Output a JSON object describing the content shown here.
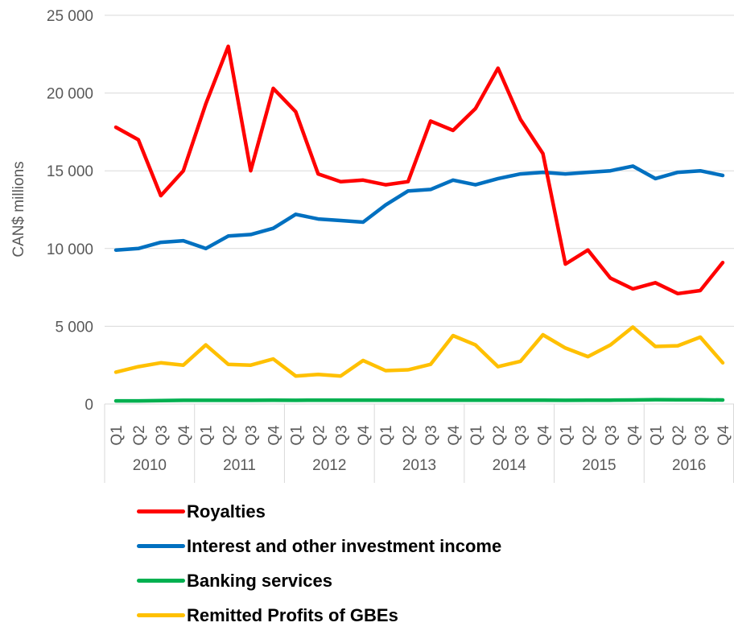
{
  "chart_data": {
    "type": "line",
    "ylabel": "CAN$ millions",
    "ylim": [
      0,
      25000
    ],
    "yticks": [
      0,
      5000,
      10000,
      15000,
      20000,
      25000
    ],
    "ytick_labels": [
      "0",
      "5 000",
      "10 000",
      "15 000",
      "20 000",
      "25 000"
    ],
    "grid": true,
    "legend_position": "bottom",
    "years": [
      "2010",
      "2011",
      "2012",
      "2013",
      "2014",
      "2015",
      "2016"
    ],
    "quarters": [
      "Q1",
      "Q2",
      "Q3",
      "Q4"
    ],
    "series": [
      {
        "name": "Royalties",
        "color": "#ff0000",
        "values": [
          17800,
          17000,
          13400,
          15000,
          19300,
          23000,
          15000,
          20300,
          18800,
          14800,
          14300,
          14400,
          14100,
          14300,
          18200,
          17600,
          19000,
          21600,
          18300,
          16100,
          9000,
          9900,
          8100,
          7400,
          7800,
          7100,
          7300,
          9100
        ]
      },
      {
        "name": "Interest and other investment income",
        "color": "#0070c0",
        "values": [
          9900,
          10000,
          10400,
          10500,
          10000,
          10800,
          10900,
          11300,
          12200,
          11900,
          11800,
          11700,
          12800,
          13700,
          13800,
          14400,
          14100,
          14500,
          14800,
          14900,
          14800,
          14900,
          15000,
          15300,
          14500,
          14900,
          15000,
          14700
        ]
      },
      {
        "name": "Banking services",
        "color": "#00b050",
        "values": [
          200,
          200,
          220,
          240,
          240,
          240,
          240,
          250,
          240,
          250,
          250,
          250,
          250,
          250,
          250,
          250,
          250,
          250,
          250,
          250,
          240,
          250,
          250,
          260,
          280,
          270,
          270,
          260
        ]
      },
      {
        "name": "Remitted Profits of GBEs",
        "color": "#ffc000",
        "values": [
          2050,
          2400,
          2650,
          2500,
          3800,
          2550,
          2500,
          2900,
          1800,
          1900,
          1800,
          2800,
          2150,
          2200,
          2550,
          4400,
          3800,
          2400,
          2750,
          4450,
          3600,
          3050,
          3800,
          4950,
          3700,
          3750,
          4300,
          2650
        ]
      }
    ]
  }
}
